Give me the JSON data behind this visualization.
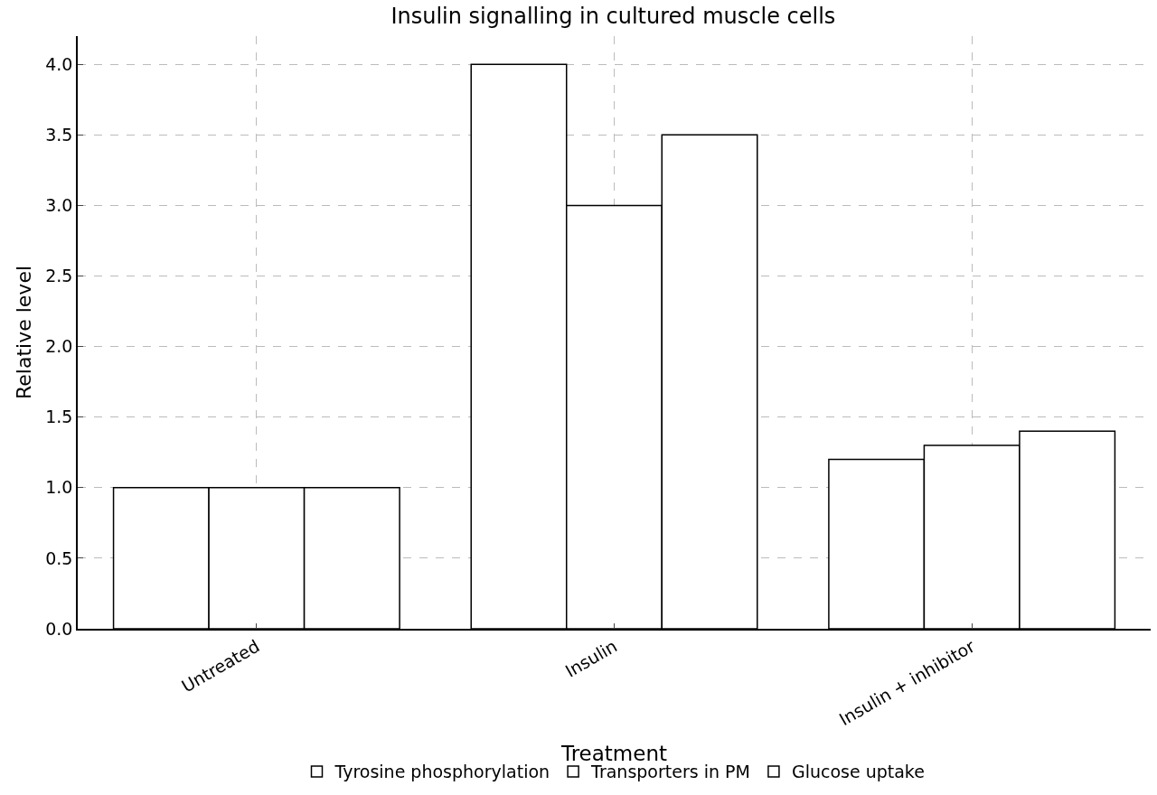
{
  "chart_data": {
    "type": "bar",
    "title": "Insulin signalling in cultured muscle cells",
    "xlabel": "Treatment",
    "ylabel": "Relative level",
    "categories": [
      "Untreated",
      "Insulin",
      "Insulin + inhibitor"
    ],
    "series": [
      {
        "name": "Tyrosine phosphorylation",
        "color": "#ffffff",
        "values": [
          1.0,
          4.0,
          1.2
        ]
      },
      {
        "name": "Transporters in PM",
        "color": "#ffffff",
        "values": [
          1.0,
          3.0,
          1.3
        ]
      },
      {
        "name": "Glucose uptake",
        "color": "#ffffff",
        "values": [
          1.0,
          3.5,
          1.4
        ]
      }
    ],
    "ylim": [
      0,
      4.2
    ],
    "yticks": [
      {
        "value": 0,
        "label": "0.0"
      },
      {
        "value": 0.5,
        "label": "0.5"
      },
      {
        "value": 1,
        "label": "1.0"
      },
      {
        "value": 1.5,
        "label": "1.5"
      },
      {
        "value": 2,
        "label": "2.0"
      },
      {
        "value": 2.5,
        "label": "2.5"
      },
      {
        "value": 3,
        "label": "3.0"
      },
      {
        "value": 3.5,
        "label": "3.5"
      },
      {
        "value": 4,
        "label": "4.0"
      }
    ],
    "grid": true,
    "legend": "bottom"
  }
}
